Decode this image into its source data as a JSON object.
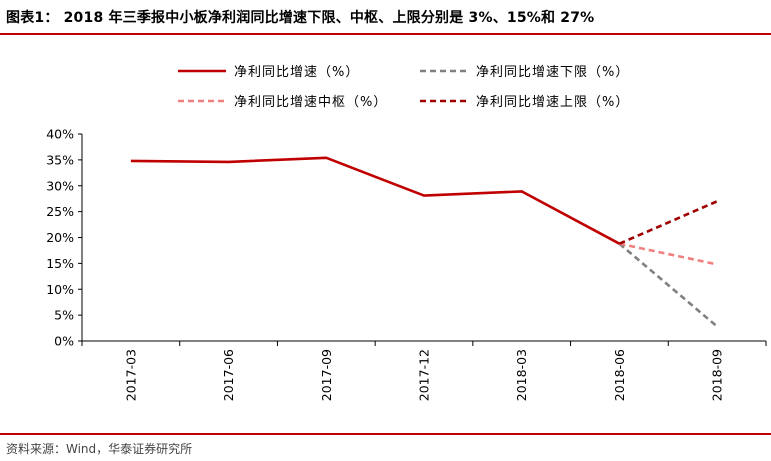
{
  "header": {
    "title": "图表1：  2018 年三季报中小板净利润同比增速下限、中枢、上限分别是 3%、15%和 27%"
  },
  "footer": {
    "source": "资料来源：Wind，华泰证券研究所"
  },
  "colors": {
    "rule": "#c00000"
  },
  "chart_data": {
    "type": "line",
    "title": "",
    "xlabel": "",
    "ylabel": "",
    "categories": [
      "2017-03",
      "2017-06",
      "2017-09",
      "2017-12",
      "2018-03",
      "2018-06",
      "2018-09"
    ],
    "y_ticks": [
      "0%",
      "5%",
      "10%",
      "15%",
      "20%",
      "25%",
      "30%",
      "35%",
      "40%"
    ],
    "ylim": [
      0,
      40
    ],
    "grid": false,
    "legend_position": "top",
    "series": [
      {
        "name": "净利同比增速（%）",
        "color": "#c00000",
        "dash": "solid",
        "values": [
          34.8,
          34.6,
          35.4,
          28.1,
          28.9,
          18.8,
          null
        ]
      },
      {
        "name": "净利同比增速下限（%）",
        "color": "#808080",
        "dash": "dashed",
        "values": [
          null,
          null,
          null,
          null,
          null,
          18.8,
          2.8
        ]
      },
      {
        "name": "净利同比增速中枢（%）",
        "color": "#f08080",
        "dash": "dashed",
        "values": [
          null,
          null,
          null,
          null,
          null,
          18.8,
          14.8
        ]
      },
      {
        "name": "净利同比增速上限（%）",
        "color": "#a00000",
        "dash": "dashed",
        "values": [
          null,
          null,
          null,
          null,
          null,
          18.8,
          27.0
        ]
      }
    ]
  }
}
